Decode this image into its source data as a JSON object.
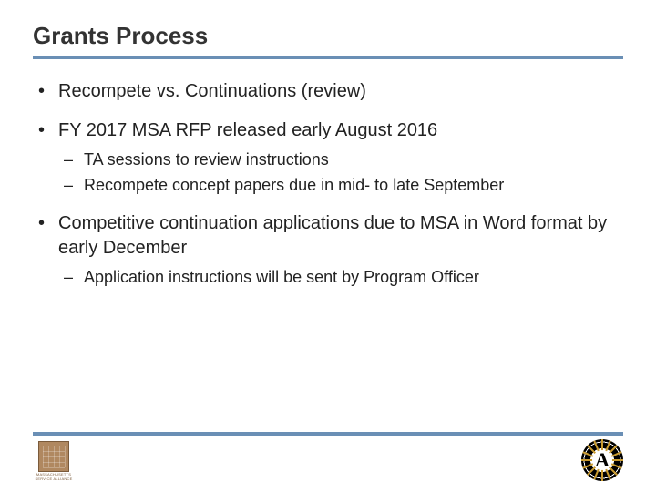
{
  "title": "Grants Process",
  "colors": {
    "underline": "#6a8fb5",
    "text": "#222222",
    "title": "#333333",
    "background": "#ffffff"
  },
  "bullets": [
    {
      "text": "Recompete vs. Continuations (review)",
      "sub": []
    },
    {
      "text": "FY 2017 MSA RFP released early August 2016",
      "sub": [
        "TA sessions to review instructions",
        "Recompete concept papers due in mid- to late September"
      ]
    },
    {
      "text": "Competitive continuation applications due to MSA in Word format by early December",
      "sub": [
        "Application instructions will be sent by Program Officer"
      ]
    }
  ],
  "logos": {
    "left": {
      "name": "massachusetts-service-alliance",
      "line1": "MASSACHUSETTS",
      "line2": "SERVICE ALLIANCE"
    },
    "right": {
      "name": "americorps",
      "letter": "A"
    }
  }
}
